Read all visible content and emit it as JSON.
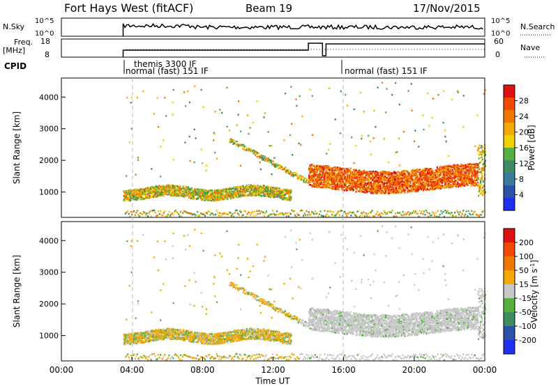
{
  "header": {
    "title": "Fort Hays West (fitACF)",
    "beam": "Beam 19",
    "date": "17/Nov/2015"
  },
  "top_panels": {
    "nsky_label": "N.Sky",
    "nsky_ticks": [
      "10^5",
      "10^0"
    ],
    "nsearch_label": "N.Search",
    "nsearch_ticks": [
      "10^5",
      "10^0"
    ],
    "freq_label": "Freq.",
    "freq_unit": "[MHz]",
    "freq_ticks": [
      "18",
      "8"
    ],
    "nave_label": "Nave",
    "nave_ticks": [
      "60",
      "0"
    ],
    "cpid_label": "CPID",
    "cpid_entries": [
      "themis 3300 IF",
      "normal (fast) 151 IF",
      "normal (fast) 151 IF"
    ]
  },
  "chart_data": [
    {
      "type": "heatmap",
      "name": "power-panel",
      "ylabel": "Slant Range [km]",
      "ylim": [
        200,
        4600
      ],
      "yticks": [
        "1000",
        "2000",
        "3000",
        "4000"
      ],
      "colorbar_label": "Power [dB]",
      "colorbar_ticks": [
        "4",
        "8",
        "12",
        "16",
        "20",
        "24",
        "28"
      ],
      "colorbar_colors": [
        "#1e2ff0",
        "#2a52a8",
        "#3a7a9a",
        "#3d8d60",
        "#56b040",
        "#f2d000",
        "#f7a800",
        "#f07800",
        "#f04a00",
        "#e01010"
      ],
      "echo_bands": [
        {
          "t_start": 3.5,
          "t_end": 13.0,
          "range_low": 850,
          "range_high": 1200,
          "level": "medium"
        },
        {
          "t_start": 14.0,
          "t_end": 23.6,
          "range_low": 1000,
          "range_high": 2000,
          "level": "strong"
        },
        {
          "t_start": 23.6,
          "t_end": 24.0,
          "range_low": 900,
          "range_high": 2500,
          "level": "medium"
        }
      ]
    },
    {
      "type": "heatmap",
      "name": "velocity-panel",
      "ylabel": "Slant Range [km]",
      "ylim": [
        200,
        4600
      ],
      "yticks": [
        "1000",
        "2000",
        "3000",
        "4000"
      ],
      "colorbar_label": "Velocity [m s^-1]",
      "colorbar_ticks": [
        "200",
        "100",
        "50",
        "15",
        "-15",
        "-50",
        "-100",
        "-200"
      ],
      "colorbar_colors": [
        "#1e2ff0",
        "#2a52a8",
        "#3d8d60",
        "#56b040",
        "#c8c8c8",
        "#f7a800",
        "#f07800",
        "#f04a00",
        "#e01010"
      ],
      "x_ticks": [
        "00:00",
        "04:00",
        "08:00",
        "12:00",
        "16:00",
        "20:00",
        "00:00"
      ],
      "xlabel": "Time UT",
      "xlim": [
        0,
        24
      ]
    }
  ]
}
